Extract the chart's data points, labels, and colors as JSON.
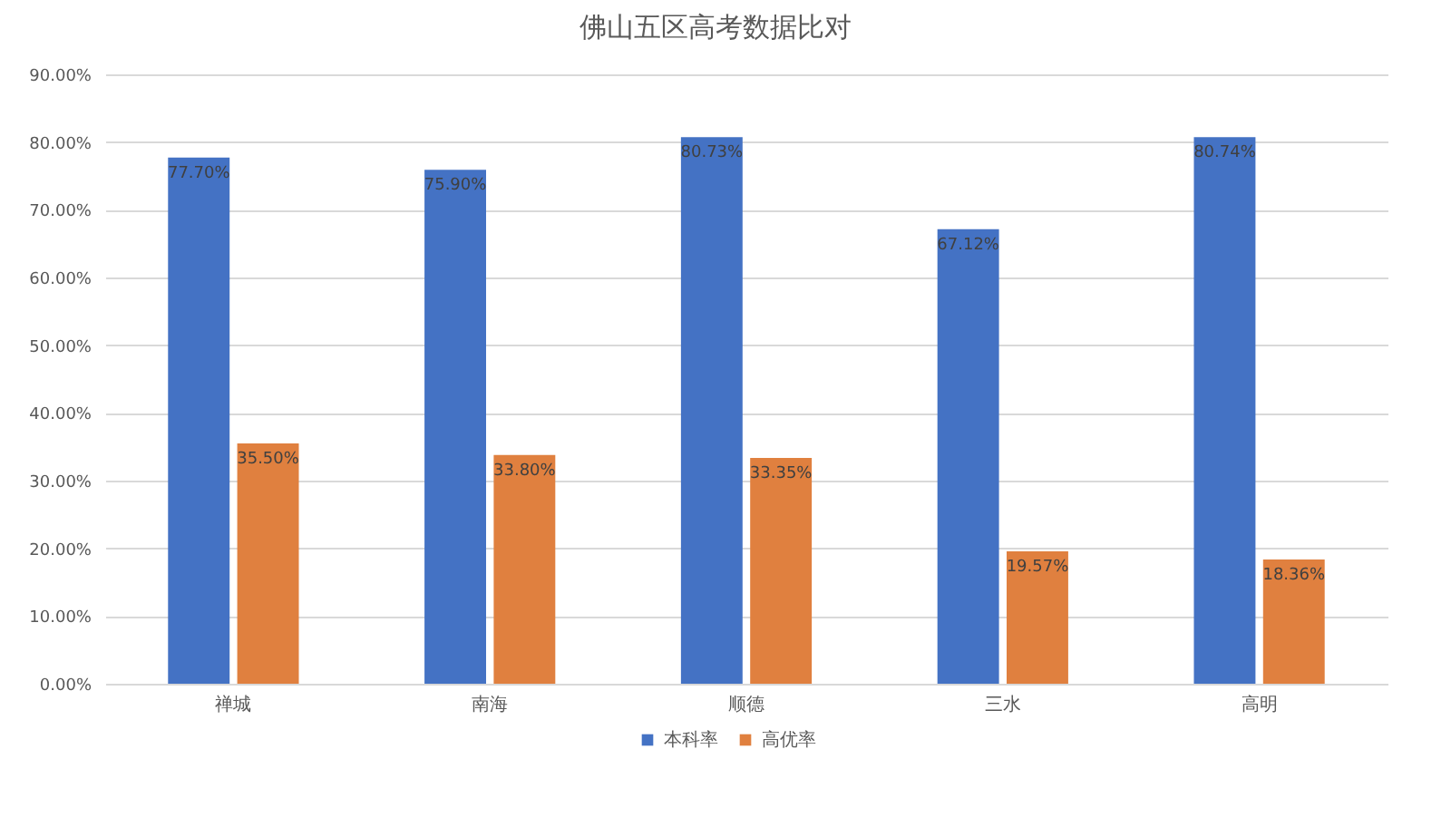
{
  "chart_data": {
    "type": "bar",
    "title": "佛山五区高考数据比对",
    "categories": [
      "禅城",
      "南海",
      "顺德",
      "三水",
      "高明"
    ],
    "series": [
      {
        "name": "本科率",
        "color": "#4472c4",
        "values": [
          77.7,
          75.9,
          80.73,
          67.12,
          80.74
        ],
        "value_labels": [
          "77.70%",
          "75.90%",
          "80.73%",
          "67.12%",
          "80.74%"
        ]
      },
      {
        "name": "高优率",
        "color": "#e0803f",
        "values": [
          35.5,
          33.8,
          33.35,
          19.57,
          18.36
        ],
        "value_labels": [
          "35.50%",
          "33.80%",
          "33.35%",
          "19.57%",
          "18.36%"
        ]
      }
    ],
    "ylim": [
      0,
      90
    ],
    "yticks": [
      {
        "value": 0,
        "label": "0.00%"
      },
      {
        "value": 10,
        "label": "10.00%"
      },
      {
        "value": 20,
        "label": "20.00%"
      },
      {
        "value": 30,
        "label": "30.00%"
      },
      {
        "value": 40,
        "label": "40.00%"
      },
      {
        "value": 50,
        "label": "50.00%"
      },
      {
        "value": 60,
        "label": "60.00%"
      },
      {
        "value": 70,
        "label": "70.00%"
      },
      {
        "value": 80,
        "label": "80.00%"
      },
      {
        "value": 90,
        "label": "90.00%"
      }
    ],
    "grid": "y",
    "legend": "bottom"
  }
}
